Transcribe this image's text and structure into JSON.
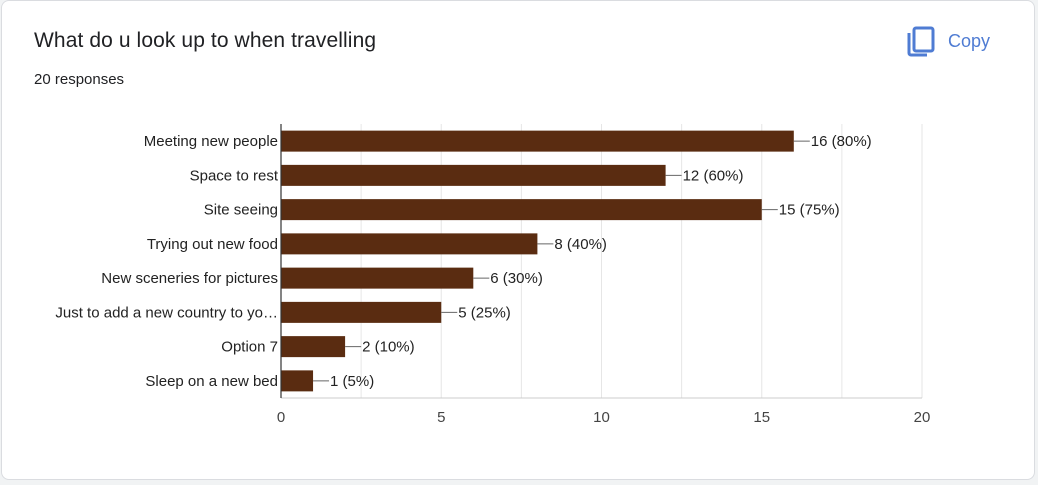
{
  "header": {
    "title": "What do u look up to when travelling",
    "responses": "20 responses",
    "copy_label": "Copy"
  },
  "icons": {
    "copy": "copy-icon"
  },
  "colors": {
    "bar": "#5a2c11",
    "accent": "#4f7cd3"
  },
  "chart_data": {
    "type": "bar",
    "orientation": "horizontal",
    "title": "What do u look up to when travelling",
    "categories": [
      "Meeting new people",
      "Space to rest",
      "Site seeing",
      "Trying out new food",
      "New sceneries for pictures",
      "Just to add a new country to yo…",
      "Option 7",
      "Sleep on a new bed"
    ],
    "values": [
      16,
      12,
      15,
      8,
      6,
      5,
      2,
      1
    ],
    "data_labels": [
      "16 (80%)",
      "12 (60%)",
      "15 (75%)",
      "8 (40%)",
      "6 (30%)",
      "5 (25%)",
      "2 (10%)",
      "1 (5%)"
    ],
    "xlim": [
      0,
      20
    ],
    "xticks": [
      0,
      5,
      10,
      15,
      20
    ],
    "xtick_labels": [
      "0",
      "5",
      "10",
      "15",
      "20"
    ],
    "grid": true
  }
}
